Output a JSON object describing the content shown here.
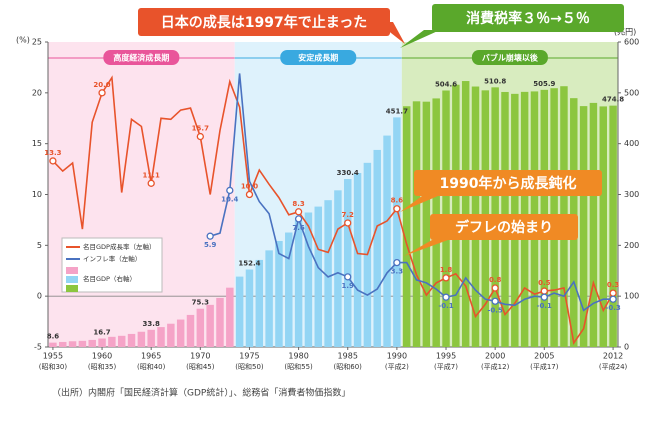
{
  "chart_data": {
    "type": "bar_line",
    "x": [
      1955,
      1956,
      1957,
      1958,
      1959,
      1960,
      1961,
      1962,
      1963,
      1964,
      1965,
      1966,
      1967,
      1968,
      1969,
      1970,
      1971,
      1972,
      1973,
      1974,
      1975,
      1976,
      1977,
      1978,
      1979,
      1980,
      1981,
      1982,
      1983,
      1984,
      1985,
      1986,
      1987,
      1988,
      1989,
      1990,
      1991,
      1992,
      1993,
      1994,
      1995,
      1996,
      1997,
      1998,
      1999,
      2000,
      2001,
      2002,
      2003,
      2004,
      2005,
      2006,
      2007,
      2008,
      2009,
      2010,
      2011,
      2012
    ],
    "xlim": [
      1954.5,
      2012.5
    ],
    "xticks": [
      1955,
      1960,
      1965,
      1970,
      1975,
      1980,
      1985,
      1990,
      1995,
      2000,
      2005,
      2012
    ],
    "xtick_sublabels": [
      "(昭和30)",
      "(昭和35)",
      "(昭和40)",
      "(昭和45)",
      "(昭和50)",
      "(昭和55)",
      "(昭和60)",
      "(平成2)",
      "(平成7)",
      "(平成12)",
      "(平成17)",
      "(平成24)"
    ],
    "ylim": [
      -5,
      25
    ],
    "yticks": [
      -5,
      0,
      5,
      10,
      15,
      20,
      25
    ],
    "y_unit": "(%)",
    "y2lim": [
      0,
      600
    ],
    "y2ticks": [
      0,
      100,
      200,
      300,
      400,
      500,
      600
    ],
    "y2_unit": "(兆円)",
    "eras": [
      {
        "name": "高度経済成長期",
        "start": 1955,
        "end": 1973,
        "color": "#fde3ee",
        "label_color": "#e9559a",
        "bar_color": "#f5a3c7"
      },
      {
        "name": "安定成長期",
        "start": 1974,
        "end": 1990,
        "color": "#def2fc",
        "label_color": "#39a9e0",
        "bar_color": "#93d5f4"
      },
      {
        "name": "バブル崩壊以後",
        "start": 1991,
        "end": 2012,
        "color": "#d8ecbf",
        "label_color": "#5aa82b",
        "bar_color": "#8cc63f"
      }
    ],
    "series": [
      {
        "name": "名目GDP成長率（左軸）",
        "kind": "line",
        "color": "#e8532b",
        "values": [
          13.3,
          12.3,
          13.1,
          6.6,
          17.1,
          20.0,
          21.5,
          10.2,
          17.4,
          16.7,
          11.1,
          17.5,
          17.4,
          18.3,
          18.5,
          15.7,
          10.0,
          16.3,
          21.1,
          18.6,
          10.0,
          12.4,
          11.0,
          9.7,
          8.0,
          8.3,
          6.9,
          4.6,
          4.3,
          6.6,
          7.2,
          4.2,
          4.1,
          6.9,
          7.4,
          8.6,
          5.1,
          2.1,
          0.1,
          1.3,
          1.8,
          2.2,
          1.0,
          -2.0,
          -0.8,
          0.8,
          -1.8,
          -0.7,
          0.8,
          0.2,
          0.5,
          0.6,
          0.8,
          -4.6,
          -3.2,
          1.3,
          -1.4,
          0.3
        ],
        "value_labels": [
          "13.3",
          null,
          null,
          null,
          null,
          "20.0",
          null,
          null,
          null,
          null,
          "11.1",
          null,
          null,
          null,
          null,
          "15.7",
          null,
          null,
          null,
          null,
          "10.0",
          null,
          null,
          null,
          null,
          "8.3",
          null,
          null,
          null,
          null,
          "7.2",
          null,
          null,
          null,
          null,
          "8.6",
          null,
          null,
          null,
          null,
          "1.8",
          null,
          null,
          null,
          null,
          "0.8",
          null,
          null,
          null,
          null,
          "0.5",
          null,
          null,
          null,
          null,
          null,
          null,
          "0.3"
        ]
      },
      {
        "name": "インフレ率（左軸）",
        "kind": "line",
        "color": "#4a72c0",
        "values": [
          null,
          null,
          null,
          null,
          null,
          null,
          null,
          null,
          null,
          null,
          null,
          null,
          null,
          null,
          null,
          null,
          5.9,
          6.2,
          10.4,
          21.9,
          11.3,
          9.3,
          8.1,
          4.2,
          3.7,
          7.6,
          4.9,
          2.8,
          1.9,
          2.3,
          1.9,
          0.6,
          0.1,
          0.7,
          2.3,
          3.3,
          3.3,
          1.6,
          1.3,
          0.7,
          -0.1,
          0.1,
          1.8,
          0.6,
          -0.3,
          -0.5,
          -0.8,
          -0.9,
          -0.3,
          0.0,
          -0.1,
          0.3,
          0.0,
          1.4,
          -1.4,
          -0.7,
          -0.3,
          -0.3
        ],
        "value_labels": [
          null,
          null,
          null,
          null,
          null,
          null,
          null,
          null,
          null,
          null,
          null,
          null,
          null,
          null,
          null,
          null,
          "5.9",
          null,
          "10.4",
          null,
          null,
          null,
          null,
          null,
          null,
          "7.6",
          null,
          null,
          null,
          null,
          "1.9",
          null,
          null,
          null,
          null,
          "3.3",
          null,
          null,
          null,
          null,
          "-0.1",
          null,
          null,
          null,
          null,
          "-0.5",
          null,
          null,
          null,
          null,
          "-0.1",
          null,
          null,
          null,
          null,
          null,
          null,
          "-0.3"
        ]
      },
      {
        "name": "名目GDP（右軸）",
        "kind": "bar",
        "axis": "y2",
        "values": [
          8.6,
          9.9,
          11.3,
          12.1,
          13.9,
          16.7,
          20.0,
          22.0,
          25.7,
          30.0,
          33.8,
          39.2,
          45.8,
          54.0,
          63.1,
          75.3,
          82.9,
          96.5,
          116.7,
          138.5,
          152.4,
          171.3,
          190.1,
          208.6,
          225.2,
          248.4,
          264.6,
          276.2,
          288.8,
          308.2,
          330.4,
          342.3,
          362.3,
          387.7,
          415.9,
          451.7,
          473.6,
          483.3,
          482.6,
          489.0,
          504.6,
          515.9,
          523.2,
          512.4,
          504.9,
          510.8,
          501.7,
          498.0,
          501.9,
          502.8,
          505.9,
          509.1,
          513.0,
          489.5,
          473.9,
          480.2,
          473.3,
          474.8
        ],
        "value_labels": [
          "8.6",
          null,
          null,
          null,
          null,
          "16.7",
          null,
          null,
          null,
          null,
          "33.8",
          null,
          null,
          null,
          null,
          "75.3",
          null,
          null,
          null,
          null,
          "152.4",
          null,
          null,
          null,
          null,
          null,
          null,
          null,
          null,
          null,
          "330.4",
          null,
          null,
          null,
          null,
          "451.7",
          null,
          null,
          null,
          null,
          "504.6",
          null,
          null,
          null,
          null,
          "510.8",
          null,
          null,
          null,
          null,
          "505.9",
          null,
          null,
          null,
          null,
          null,
          null,
          "474.8"
        ]
      }
    ],
    "annotations": [
      {
        "text": "日本の成長は1997年で止まった",
        "color": "#e8532b"
      },
      {
        "text": "消費税率３％→５％",
        "color": "#5aa82b"
      },
      {
        "text": "1990年から成長鈍化",
        "color": "#f08a24"
      },
      {
        "text": "デフレの始まり",
        "color": "#f08a24"
      }
    ],
    "source": "（出所）内閣府「国民経済計算（GDP統計）」、総務省「消費者物価指数」"
  }
}
